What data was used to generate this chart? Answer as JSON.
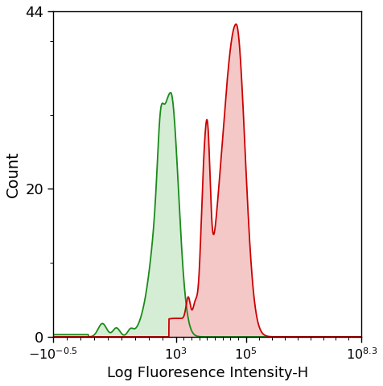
{
  "title": "",
  "xlabel": "Log Fluoresence Intensity-H",
  "ylabel": "Count",
  "xlim": [
    -0.5,
    8.3
  ],
  "ylim": [
    0,
    44
  ],
  "yticks": [
    0,
    20,
    44
  ],
  "xtick_positions": [
    -0.5,
    3,
    5,
    8.3
  ],
  "green_color": "#1a8a1a",
  "green_fill": "#d4edd4",
  "red_color": "#cc0000",
  "red_fill": "#f5c8c8",
  "background": "#ffffff",
  "green_peak_x": 2.85,
  "green_peak_y": 33,
  "red_peak_x": 4.72,
  "red_peak_y": 42
}
